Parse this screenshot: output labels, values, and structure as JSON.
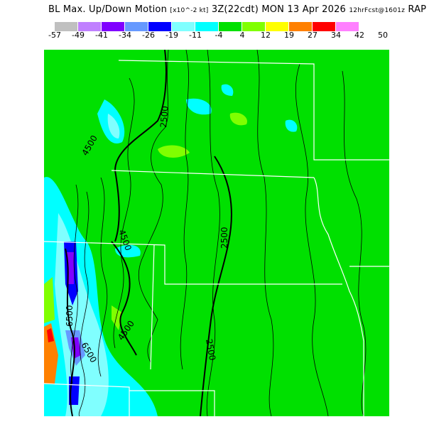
{
  "title": {
    "field": "BL Max. Up/Down Motion",
    "units": "[x10^-2 kt]",
    "valid": "3Z(22cdt) MON 13 Apr 2026",
    "forecast": "12hrFcst@1601z",
    "model": "RAP"
  },
  "legend": {
    "colors": [
      "#c0c0c0",
      "#c080ff",
      "#8000ff",
      "#6699ff",
      "#0000ff",
      "#80ffff",
      "#00ffff",
      "#00e000",
      "#80ff00",
      "#ffff00",
      "#ff8000",
      "#ff0000",
      "#ff80ff"
    ],
    "ticks": [
      "-57",
      "-49",
      "-41",
      "-34",
      "-26",
      "-19",
      "-11",
      "-4",
      "4",
      "12",
      "19",
      "27",
      "34",
      "42",
      "50"
    ]
  },
  "contour_labels": [
    "2500",
    "4500",
    "4500",
    "2500",
    "4500",
    "2500",
    "6500",
    "6500",
    "4500"
  ]
}
